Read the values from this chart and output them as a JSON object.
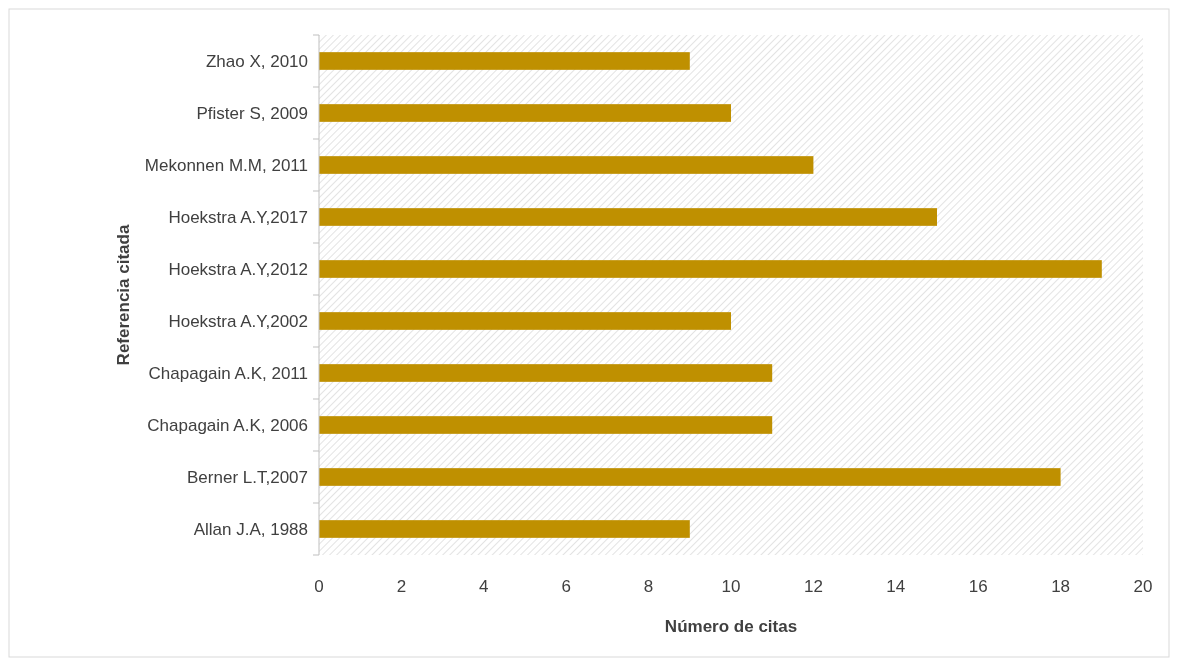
{
  "chart_data": {
    "type": "bar",
    "orientation": "horizontal",
    "xlabel": "Número de citas",
    "ylabel": "Referencia citada",
    "categories": [
      "Zhao X, 2010",
      "Pfister S, 2009",
      "Mekonnen M.M, 2011",
      "Hoekstra A.Y,2017",
      "Hoekstra A.Y,2012",
      "Hoekstra A.Y,2002",
      "Chapagain A.K, 2011",
      "Chapagain A.K, 2006",
      "Berner L.T,2007",
      "Allan J.A, 1988"
    ],
    "values": [
      9,
      10,
      12,
      15,
      19,
      10,
      11,
      11,
      18,
      9
    ],
    "color": "#bf9000",
    "xlim": [
      0,
      20
    ],
    "xticks": [
      0,
      2,
      4,
      6,
      8,
      10,
      12,
      14,
      16,
      18,
      20
    ],
    "grid": false
  }
}
